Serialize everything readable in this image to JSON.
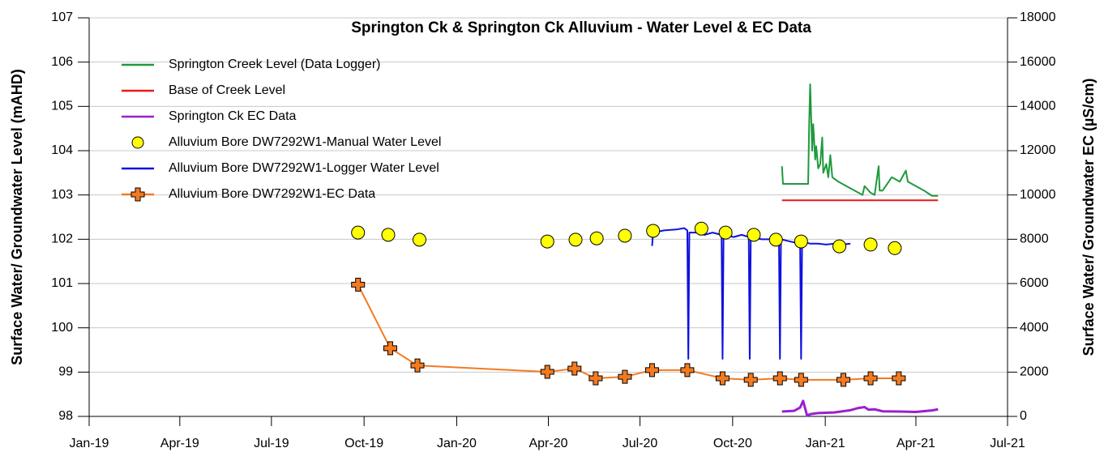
{
  "chart_data": {
    "type": "line",
    "title": "Springton Ck & Springton Ck Alluvium - Water Level & EC Data",
    "ylabel": "Surface Water/ Groundwater Level (mAHD)",
    "y2label": "Surface Water/ Groundwater EC (µS/cm)",
    "xlim": [
      "2019-01",
      "2021-07"
    ],
    "xticks": [
      {
        "value": "2019-01",
        "label": "Jan-19"
      },
      {
        "value": "2019-04",
        "label": "Apr-19"
      },
      {
        "value": "2019-07",
        "label": "Jul-19"
      },
      {
        "value": "2019-10",
        "label": "Oct-19"
      },
      {
        "value": "2020-01",
        "label": "Jan-20"
      },
      {
        "value": "2020-04",
        "label": "Apr-20"
      },
      {
        "value": "2020-07",
        "label": "Jul-20"
      },
      {
        "value": "2020-10",
        "label": "Oct-20"
      },
      {
        "value": "2021-01",
        "label": "Jan-21"
      },
      {
        "value": "2021-04",
        "label": "Apr-21"
      },
      {
        "value": "2021-07",
        "label": "Jul-21"
      }
    ],
    "ylim": [
      98,
      107
    ],
    "yticks": [
      98,
      99,
      100,
      101,
      102,
      103,
      104,
      105,
      106,
      107
    ],
    "y2lim": [
      0,
      18000
    ],
    "y2ticks": [
      0,
      2000,
      4000,
      6000,
      8000,
      10000,
      12000,
      14000,
      16000,
      18000
    ],
    "grid": true,
    "legend": "upper left",
    "series": [
      {
        "name": "Springton Creek Level (Data Logger)",
        "color": "#1e9a3c",
        "kind": "line",
        "axis": "y",
        "x": [
          "2020-11-19",
          "2020-11-20",
          "2020-12-15",
          "2020-12-16",
          "2020-12-17",
          "2020-12-19",
          "2020-12-20",
          "2020-12-22",
          "2020-12-23",
          "2020-12-25",
          "2020-12-27",
          "2020-12-29",
          "2020-12-30",
          "2021-01-02",
          "2021-01-04",
          "2021-01-06",
          "2021-01-08",
          "2021-01-14",
          "2021-01-26",
          "2021-02-07",
          "2021-02-09",
          "2021-02-15",
          "2021-02-19",
          "2021-02-23",
          "2021-02-24",
          "2021-02-27",
          "2021-03-08",
          "2021-03-16",
          "2021-03-22",
          "2021-03-24",
          "2021-04-09",
          "2021-04-17",
          "2021-04-23"
        ],
        "values": [
          103.65,
          103.25,
          103.25,
          104.6,
          105.5,
          104.0,
          104.6,
          103.8,
          104.1,
          103.6,
          103.7,
          104.3,
          103.5,
          103.7,
          103.4,
          103.9,
          103.4,
          103.3,
          103.15,
          103.0,
          103.2,
          103.05,
          103.0,
          103.65,
          103.1,
          103.1,
          103.4,
          103.3,
          103.55,
          103.3,
          103.1,
          102.98,
          102.98
        ]
      },
      {
        "name": "Base of Creek Level",
        "color": "#e8191a",
        "kind": "line",
        "axis": "y",
        "x": [
          "2020-11-19",
          "2021-04-23"
        ],
        "values": [
          102.88,
          102.88
        ]
      },
      {
        "name": "Springton Ck EC Data",
        "color": "#9b1fcf",
        "kind": "line",
        "axis": "y2",
        "x": [
          "2020-11-19",
          "2020-12-01",
          "2020-12-07",
          "2020-12-10",
          "2020-12-14",
          "2020-12-17",
          "2020-12-25",
          "2021-01-10",
          "2021-01-26",
          "2021-02-03",
          "2021-02-09",
          "2021-02-13",
          "2021-02-19",
          "2021-02-27",
          "2021-03-16",
          "2021-04-01",
          "2021-04-17",
          "2021-04-23"
        ],
        "values": [
          220,
          250,
          400,
          700,
          30,
          100,
          150,
          180,
          280,
          380,
          420,
          300,
          320,
          230,
          220,
          200,
          270,
          320
        ]
      },
      {
        "name": "Alluvium Bore DW7292W1-Manual Water Level",
        "color": "#ffff00",
        "kind": "circle",
        "axis": "y",
        "x": [
          "2019-09-25",
          "2019-10-25",
          "2019-11-25",
          "2020-03-31",
          "2020-04-28",
          "2020-05-19",
          "2020-06-16",
          "2020-07-14",
          "2020-08-31",
          "2020-09-24",
          "2020-10-22",
          "2020-11-13",
          "2020-12-08",
          "2021-01-15",
          "2021-02-15",
          "2021-03-11"
        ],
        "values": [
          102.15,
          102.1,
          101.99,
          101.95,
          101.99,
          102.02,
          102.08,
          102.19,
          102.24,
          102.15,
          102.1,
          101.99,
          101.95,
          101.84,
          101.88,
          101.8
        ]
      },
      {
        "name": "Alluvium Bore DW7292W1-Logger Water Level",
        "color": "#1010e0",
        "kind": "line",
        "axis": "y",
        "x": [
          "2020-07-13",
          "2020-07-14",
          "2020-07-25",
          "2020-08-06",
          "2020-08-14",
          "2020-08-17",
          "2020-08-18",
          "2020-08-19",
          "2020-08-26",
          "2020-09-03",
          "2020-09-11",
          "2020-09-20",
          "2020-09-21",
          "2020-09-22",
          "2020-10-02",
          "2020-10-10",
          "2020-10-17",
          "2020-10-18",
          "2020-10-19",
          "2020-10-30",
          "2020-11-07",
          "2020-11-16",
          "2020-11-17",
          "2020-11-18",
          "2020-11-27",
          "2020-12-07",
          "2020-12-08",
          "2020-12-09",
          "2020-12-17",
          "2020-12-25",
          "2021-01-02",
          "2021-01-10",
          "2021-01-18",
          "2021-01-26"
        ],
        "values": [
          101.85,
          102.15,
          102.2,
          102.22,
          102.25,
          102.2,
          99.3,
          102.15,
          102.15,
          102.1,
          102.15,
          102.1,
          99.3,
          102.1,
          102.05,
          102.1,
          102.05,
          99.3,
          102.05,
          102.0,
          102.0,
          101.95,
          99.3,
          102.0,
          101.95,
          101.9,
          99.3,
          101.95,
          101.9,
          101.9,
          101.88,
          101.9,
          101.88,
          101.9
        ]
      },
      {
        "name": "Alluvium Bore DW7292W1-EC Data",
        "color": "#f47a20",
        "kind": "line-cross",
        "axis": "y2",
        "x": [
          "2019-09-25",
          "2019-10-27",
          "2019-11-23",
          "2020-03-31",
          "2020-04-27",
          "2020-05-18",
          "2020-06-16",
          "2020-07-13",
          "2020-08-17",
          "2020-09-21",
          "2020-10-19",
          "2020-11-17",
          "2020-12-08",
          "2021-01-19",
          "2021-02-15",
          "2021-03-15"
        ],
        "values": [
          5950,
          3080,
          2300,
          2010,
          2160,
          1720,
          1790,
          2090,
          2090,
          1720,
          1650,
          1720,
          1650,
          1650,
          1720,
          1720
        ]
      }
    ]
  }
}
